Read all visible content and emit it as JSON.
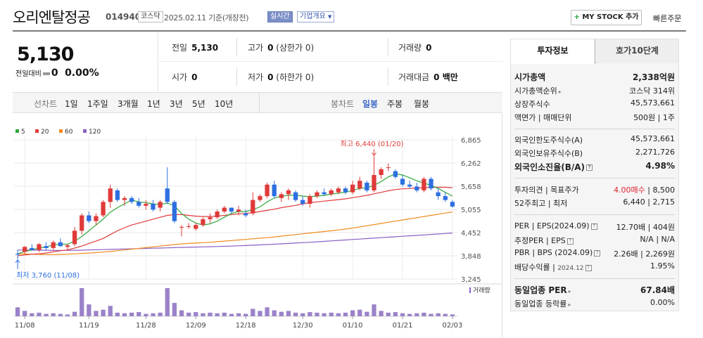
{
  "header": {
    "company": "오리엔탈정공",
    "code": "014940",
    "market": "코스닥",
    "date_text": "2025.02.11 기준(개장전)",
    "realtime": "실시간",
    "company_info": "기업개요",
    "mystock": "MY STOCK 추가",
    "quick_order": "빠른주문"
  },
  "summary": {
    "price": "5,130",
    "change_label": "전일대비",
    "change_value": "0",
    "change_rate": "0.00%"
  },
  "stats": {
    "prev_label": "전일",
    "prev_value": "5,130",
    "high_label": "고가",
    "high_value": "0",
    "upper_limit": "(상한가 0)",
    "volume_label": "거래량",
    "volume_value": "0",
    "open_label": "시가",
    "open_value": "0",
    "low_label": "저가",
    "low_value": "0",
    "lower_limit": "(하한가 0)",
    "amount_label": "거래대금",
    "amount_value": "0 백만"
  },
  "controls": {
    "line_label": "선차트",
    "line_ranges": [
      "1일",
      "1주일",
      "3개월",
      "1년",
      "3년",
      "5년",
      "10년"
    ],
    "candle_label": "봉차트",
    "candle_ranges": [
      "일봉",
      "주봉",
      "월봉"
    ],
    "selected_candle": "일봉"
  },
  "panel": {
    "tab_invest": "투자정보",
    "tab_quote": "호가10단계",
    "market_cap_label": "시가총액",
    "market_cap_value": "2,338억원",
    "rank_label": "시가총액순위",
    "rank_value": "코스닥 314위",
    "shares_label": "상장주식수",
    "shares_value": "45,573,661",
    "par_label": "액면가 | 매매단위",
    "par_value": "500원 | 1주",
    "foreign_limit_label": "외국인한도주식수(A)",
    "foreign_limit_value": "45,573,661",
    "foreign_hold_label": "외국인보유주식수(B)",
    "foreign_hold_value": "2,271,726",
    "foreign_ratio_label": "외국인소진율(B/A)",
    "foreign_ratio_value": "4.98%",
    "opinion_label": "투자의견 | 목표주가",
    "opinion_value": "4.00매수",
    "target_value": "8,500",
    "w52_label": "52주최고 | 최저",
    "w52_value": "6,440 | 2,715",
    "per_label": "PER | EPS(2024.09)",
    "per_value": "12.70배 | 404원",
    "est_label": "추정PER | EPS",
    "est_value": "N/A | N/A",
    "pbr_label": "PBR | BPS (2024.09)",
    "pbr_value": "2.26배 | 2,269원",
    "div_label": "배당수익률",
    "div_date": "2024.12",
    "div_value": "1.95%",
    "sector_per_label": "동일업종 PER",
    "sector_per_value": "67.84배",
    "sector_rate_label": "동일업종 등락률",
    "sector_rate_value": "0.00%"
  },
  "chart_data": {
    "type": "candlestick",
    "legend": [
      {
        "name": "5",
        "color": "#2fa83a"
      },
      {
        "name": "20",
        "color": "#e03a3a"
      },
      {
        "name": "60",
        "color": "#f08c1c"
      },
      {
        "name": "120",
        "color": "#8a5fc4"
      }
    ],
    "y_ticks": [
      "6,865",
      "6,262",
      "5,658",
      "5,055",
      "4,452",
      "3,848",
      "3,245"
    ],
    "ylim": [
      3245,
      6865
    ],
    "x_ticks": [
      "11/08",
      "11/19",
      "11/28",
      "12/09",
      "12/18",
      "12/30",
      "01/10",
      "01/21",
      "02/03"
    ],
    "high_annotation": "최고 6,440 (01/20)",
    "low_annotation": "최저 3,760 (11/08)",
    "volume_label": "거래량",
    "up_color": "#e03a3a",
    "down_color": "#2d6fe0",
    "candles": [
      {
        "o": 3900,
        "h": 4000,
        "l": 3760,
        "c": 3880
      },
      {
        "o": 3950,
        "h": 4100,
        "l": 3900,
        "c": 4080
      },
      {
        "o": 4050,
        "h": 4150,
        "l": 3980,
        "c": 4000
      },
      {
        "o": 4000,
        "h": 4180,
        "l": 3950,
        "c": 4150
      },
      {
        "o": 4100,
        "h": 4200,
        "l": 4000,
        "c": 4050
      },
      {
        "o": 4050,
        "h": 4250,
        "l": 4000,
        "c": 4200
      },
      {
        "o": 4200,
        "h": 4300,
        "l": 4080,
        "c": 4100
      },
      {
        "o": 4080,
        "h": 4150,
        "l": 4000,
        "c": 4120
      },
      {
        "o": 4150,
        "h": 4600,
        "l": 4100,
        "c": 4500
      },
      {
        "o": 4500,
        "h": 4950,
        "l": 4400,
        "c": 4900
      },
      {
        "o": 4900,
        "h": 5000,
        "l": 4700,
        "c": 4750
      },
      {
        "o": 4750,
        "h": 4950,
        "l": 4650,
        "c": 4880
      },
      {
        "o": 4900,
        "h": 5300,
        "l": 4850,
        "c": 5250
      },
      {
        "o": 5250,
        "h": 5700,
        "l": 5100,
        "c": 5600
      },
      {
        "o": 5550,
        "h": 5600,
        "l": 5250,
        "c": 5300
      },
      {
        "o": 5300,
        "h": 5400,
        "l": 5150,
        "c": 5350
      },
      {
        "o": 5350,
        "h": 5400,
        "l": 5200,
        "c": 5250
      },
      {
        "o": 5250,
        "h": 5350,
        "l": 5100,
        "c": 5150
      },
      {
        "o": 5150,
        "h": 5300,
        "l": 5050,
        "c": 5200
      },
      {
        "o": 5200,
        "h": 5300,
        "l": 5000,
        "c": 5050
      },
      {
        "o": 5100,
        "h": 5300,
        "l": 5000,
        "c": 5250
      },
      {
        "o": 5600,
        "h": 6150,
        "l": 5200,
        "c": 5250
      },
      {
        "o": 5250,
        "h": 5300,
        "l": 4700,
        "c": 4750
      },
      {
        "o": 4600,
        "h": 4650,
        "l": 4350,
        "c": 4600
      },
      {
        "o": 4600,
        "h": 4700,
        "l": 4550,
        "c": 4620
      },
      {
        "o": 4550,
        "h": 4700,
        "l": 4500,
        "c": 4650
      },
      {
        "o": 4650,
        "h": 4850,
        "l": 4600,
        "c": 4800
      },
      {
        "o": 4800,
        "h": 4950,
        "l": 4700,
        "c": 4850
      },
      {
        "o": 4850,
        "h": 5050,
        "l": 4800,
        "c": 5000
      },
      {
        "o": 5000,
        "h": 5150,
        "l": 4950,
        "c": 5100
      },
      {
        "o": 5100,
        "h": 5100,
        "l": 4950,
        "c": 5000
      },
      {
        "o": 5000,
        "h": 5150,
        "l": 4900,
        "c": 5050
      },
      {
        "o": 4950,
        "h": 5050,
        "l": 4850,
        "c": 4900
      },
      {
        "o": 4950,
        "h": 5500,
        "l": 4900,
        "c": 5300
      },
      {
        "o": 5300,
        "h": 5450,
        "l": 5250,
        "c": 5400
      },
      {
        "o": 5400,
        "h": 5750,
        "l": 5350,
        "c": 5700
      },
      {
        "o": 5700,
        "h": 5800,
        "l": 5350,
        "c": 5400
      },
      {
        "o": 5350,
        "h": 5500,
        "l": 5250,
        "c": 5450
      },
      {
        "o": 5450,
        "h": 5600,
        "l": 5300,
        "c": 5550
      },
      {
        "o": 5500,
        "h": 5550,
        "l": 5250,
        "c": 5300
      },
      {
        "o": 5300,
        "h": 5400,
        "l": 5150,
        "c": 5200
      },
      {
        "o": 5200,
        "h": 5450,
        "l": 5100,
        "c": 5400
      },
      {
        "o": 5400,
        "h": 5550,
        "l": 5350,
        "c": 5500
      },
      {
        "o": 5500,
        "h": 5600,
        "l": 5400,
        "c": 5450
      },
      {
        "o": 5450,
        "h": 5600,
        "l": 5400,
        "c": 5550
      },
      {
        "o": 5500,
        "h": 5650,
        "l": 5450,
        "c": 5600
      },
      {
        "o": 5600,
        "h": 5650,
        "l": 5450,
        "c": 5500
      },
      {
        "o": 5500,
        "h": 5800,
        "l": 5450,
        "c": 5700
      },
      {
        "o": 5600,
        "h": 5900,
        "l": 5550,
        "c": 5800
      },
      {
        "o": 5750,
        "h": 5800,
        "l": 5500,
        "c": 5550
      },
      {
        "o": 5550,
        "h": 6440,
        "l": 5500,
        "c": 5950
      },
      {
        "o": 5950,
        "h": 6150,
        "l": 5850,
        "c": 6100
      },
      {
        "o": 6150,
        "h": 6250,
        "l": 6050,
        "c": 6150
      },
      {
        "o": 6050,
        "h": 6100,
        "l": 5850,
        "c": 5900
      },
      {
        "o": 5850,
        "h": 5950,
        "l": 5650,
        "c": 5700
      },
      {
        "o": 5700,
        "h": 5800,
        "l": 5600,
        "c": 5650
      },
      {
        "o": 5650,
        "h": 5750,
        "l": 5500,
        "c": 5550
      },
      {
        "o": 5550,
        "h": 5900,
        "l": 5500,
        "c": 5850
      },
      {
        "o": 5850,
        "h": 5900,
        "l": 5550,
        "c": 5600
      },
      {
        "o": 5500,
        "h": 5600,
        "l": 5300,
        "c": 5400
      },
      {
        "o": 5400,
        "h": 5500,
        "l": 5250,
        "c": 5300
      },
      {
        "o": 5250,
        "h": 5300,
        "l": 5100,
        "c": 5130
      }
    ],
    "ma5": [
      3900,
      3960,
      4000,
      4050,
      4080,
      4130,
      4150,
      4150,
      4230,
      4350,
      4500,
      4650,
      4800,
      4980,
      5100,
      5200,
      5300,
      5250,
      5230,
      5200,
      5180,
      5220,
      5150,
      4950,
      4800,
      4700,
      4650,
      4680,
      4750,
      4850,
      4950,
      5000,
      5000,
      5050,
      5120,
      5250,
      5350,
      5400,
      5420,
      5430,
      5400,
      5390,
      5400,
      5420,
      5450,
      5480,
      5500,
      5550,
      5600,
      5620,
      5680,
      5780,
      5900,
      5980,
      5950,
      5880,
      5800,
      5740,
      5680,
      5600,
      5500,
      5400
    ],
    "ma20": [
      3850,
      3870,
      3890,
      3900,
      3920,
      3950,
      3980,
      4000,
      4050,
      4100,
      4170,
      4230,
      4300,
      4400,
      4500,
      4580,
      4650,
      4700,
      4750,
      4800,
      4850,
      4900,
      4920,
      4920,
      4900,
      4880,
      4870,
      4870,
      4880,
      4900,
      4920,
      4940,
      4950,
      4970,
      5000,
      5030,
      5060,
      5100,
      5130,
      5160,
      5200,
      5230,
      5250,
      5270,
      5290,
      5310,
      5330,
      5360,
      5390,
      5420,
      5460,
      5500,
      5540,
      5570,
      5590,
      5600,
      5610,
      5620,
      5630,
      5630,
      5630,
      5620
    ],
    "ma60": [
      3900,
      3895,
      3890,
      3885,
      3880,
      3880,
      3885,
      3890,
      3900,
      3910,
      3920,
      3930,
      3945,
      3960,
      3980,
      4000,
      4020,
      4040,
      4060,
      4080,
      4100,
      4120,
      4140,
      4155,
      4170,
      4180,
      4190,
      4200,
      4215,
      4230,
      4245,
      4260,
      4275,
      4290,
      4305,
      4320,
      4340,
      4360,
      4380,
      4400,
      4420,
      4440,
      4460,
      4480,
      4500,
      4520,
      4545,
      4570,
      4600,
      4630,
      4660,
      4690,
      4720,
      4750,
      4780,
      4810,
      4840,
      4870,
      4900,
      4930,
      4960,
      4990
    ],
    "ma120": [
      4000,
      3998,
      3996,
      3994,
      3992,
      3990,
      3990,
      3990,
      3992,
      3995,
      4000,
      4005,
      4010,
      4015,
      4020,
      4025,
      4030,
      4035,
      4040,
      4045,
      4050,
      4055,
      4060,
      4065,
      4070,
      4075,
      4080,
      4085,
      4090,
      4095,
      4100,
      4108,
      4116,
      4124,
      4132,
      4140,
      4150,
      4160,
      4170,
      4180,
      4190,
      4200,
      4212,
      4224,
      4236,
      4248,
      4260,
      4272,
      4284,
      4296,
      4308,
      4320,
      4332,
      4344,
      4356,
      4368,
      4380,
      4392,
      4404,
      4416,
      4428,
      4440
    ],
    "volumes": [
      30,
      18,
      10,
      12,
      8,
      10,
      8,
      6,
      15,
      95,
      40,
      18,
      22,
      35,
      12,
      10,
      12,
      14,
      8,
      10,
      12,
      95,
      45,
      20,
      12,
      14,
      10,
      12,
      10,
      12,
      8,
      10,
      8,
      25,
      18,
      30,
      20,
      15,
      18,
      12,
      10,
      14,
      12,
      10,
      12,
      10,
      12,
      20,
      22,
      15,
      40,
      18,
      12,
      14,
      10,
      8,
      10,
      12,
      8,
      10,
      8,
      6
    ]
  }
}
